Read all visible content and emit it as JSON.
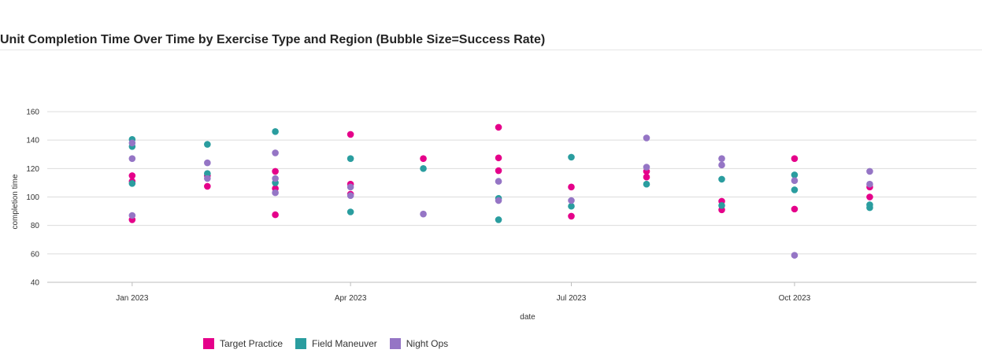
{
  "chart_data": {
    "type": "scatter",
    "title": "Unit Completion Time Over Time by Exercise Type and Region (Bubble Size=Success Rate)",
    "xlabel": "date",
    "ylabel": "completion time",
    "xlim": [
      "2022-11-27",
      "2023-12-15"
    ],
    "ylim": [
      40,
      160
    ],
    "yticks": [
      40,
      60,
      80,
      100,
      120,
      140,
      160
    ],
    "xticks": [
      {
        "date": "2023-01-01",
        "label": "Jan 2023"
      },
      {
        "date": "2023-04-01",
        "label": "Apr 2023"
      },
      {
        "date": "2023-07-01",
        "label": "Jul 2023"
      },
      {
        "date": "2023-10-01",
        "label": "Oct 2023"
      }
    ],
    "grid": "horizontal",
    "legend_position": "bottom",
    "series": [
      {
        "name": "Target Practice",
        "color": "#e5008a",
        "points": [
          {
            "x": "2023-01-01",
            "y": 115
          },
          {
            "x": "2023-01-01",
            "y": 111
          },
          {
            "x": "2023-01-01",
            "y": 84
          },
          {
            "x": "2023-02-01",
            "y": 115
          },
          {
            "x": "2023-02-01",
            "y": 107.5
          },
          {
            "x": "2023-03-01",
            "y": 118
          },
          {
            "x": "2023-03-01",
            "y": 106
          },
          {
            "x": "2023-03-01",
            "y": 87.5
          },
          {
            "x": "2023-04-01",
            "y": 144
          },
          {
            "x": "2023-04-01",
            "y": 109
          },
          {
            "x": "2023-04-01",
            "y": 102
          },
          {
            "x": "2023-05-01",
            "y": 127
          },
          {
            "x": "2023-06-01",
            "y": 149
          },
          {
            "x": "2023-06-01",
            "y": 127.5
          },
          {
            "x": "2023-06-01",
            "y": 118.5
          },
          {
            "x": "2023-07-01",
            "y": 107
          },
          {
            "x": "2023-07-01",
            "y": 86.5
          },
          {
            "x": "2023-08-01",
            "y": 118
          },
          {
            "x": "2023-08-01",
            "y": 114
          },
          {
            "x": "2023-09-01",
            "y": 97
          },
          {
            "x": "2023-09-01",
            "y": 91
          },
          {
            "x": "2023-10-01",
            "y": 127
          },
          {
            "x": "2023-10-01",
            "y": 91.5
          },
          {
            "x": "2023-11-01",
            "y": 107
          },
          {
            "x": "2023-11-01",
            "y": 100
          }
        ]
      },
      {
        "name": "Field Maneuver",
        "color": "#2a9d9f",
        "points": [
          {
            "x": "2023-01-01",
            "y": 140.5
          },
          {
            "x": "2023-01-01",
            "y": 135.5
          },
          {
            "x": "2023-01-01",
            "y": 109.5
          },
          {
            "x": "2023-02-01",
            "y": 137
          },
          {
            "x": "2023-02-01",
            "y": 116.5
          },
          {
            "x": "2023-03-01",
            "y": 146
          },
          {
            "x": "2023-03-01",
            "y": 110
          },
          {
            "x": "2023-04-01",
            "y": 127
          },
          {
            "x": "2023-04-01",
            "y": 89.5
          },
          {
            "x": "2023-05-01",
            "y": 120
          },
          {
            "x": "2023-06-01",
            "y": 99
          },
          {
            "x": "2023-06-01",
            "y": 84
          },
          {
            "x": "2023-07-01",
            "y": 128
          },
          {
            "x": "2023-07-01",
            "y": 93.5
          },
          {
            "x": "2023-08-01",
            "y": 109
          },
          {
            "x": "2023-09-01",
            "y": 112.5
          },
          {
            "x": "2023-09-01",
            "y": 94
          },
          {
            "x": "2023-10-01",
            "y": 115.5
          },
          {
            "x": "2023-10-01",
            "y": 105
          },
          {
            "x": "2023-11-01",
            "y": 94.5
          },
          {
            "x": "2023-11-01",
            "y": 92.5
          }
        ]
      },
      {
        "name": "Night Ops",
        "color": "#9575c5",
        "points": [
          {
            "x": "2023-01-01",
            "y": 138
          },
          {
            "x": "2023-01-01",
            "y": 127
          },
          {
            "x": "2023-01-01",
            "y": 87
          },
          {
            "x": "2023-02-01",
            "y": 124
          },
          {
            "x": "2023-02-01",
            "y": 113
          },
          {
            "x": "2023-03-01",
            "y": 131
          },
          {
            "x": "2023-03-01",
            "y": 113
          },
          {
            "x": "2023-03-01",
            "y": 103
          },
          {
            "x": "2023-04-01",
            "y": 107
          },
          {
            "x": "2023-04-01",
            "y": 101
          },
          {
            "x": "2023-05-01",
            "y": 88
          },
          {
            "x": "2023-06-01",
            "y": 111
          },
          {
            "x": "2023-06-01",
            "y": 97.5
          },
          {
            "x": "2023-07-01",
            "y": 97.5
          },
          {
            "x": "2023-08-01",
            "y": 141.5
          },
          {
            "x": "2023-08-01",
            "y": 121
          },
          {
            "x": "2023-09-01",
            "y": 127
          },
          {
            "x": "2023-09-01",
            "y": 122.5
          },
          {
            "x": "2023-10-01",
            "y": 111.5
          },
          {
            "x": "2023-10-01",
            "y": 59
          },
          {
            "x": "2023-11-01",
            "y": 118
          },
          {
            "x": "2023-11-01",
            "y": 109
          }
        ]
      }
    ]
  }
}
